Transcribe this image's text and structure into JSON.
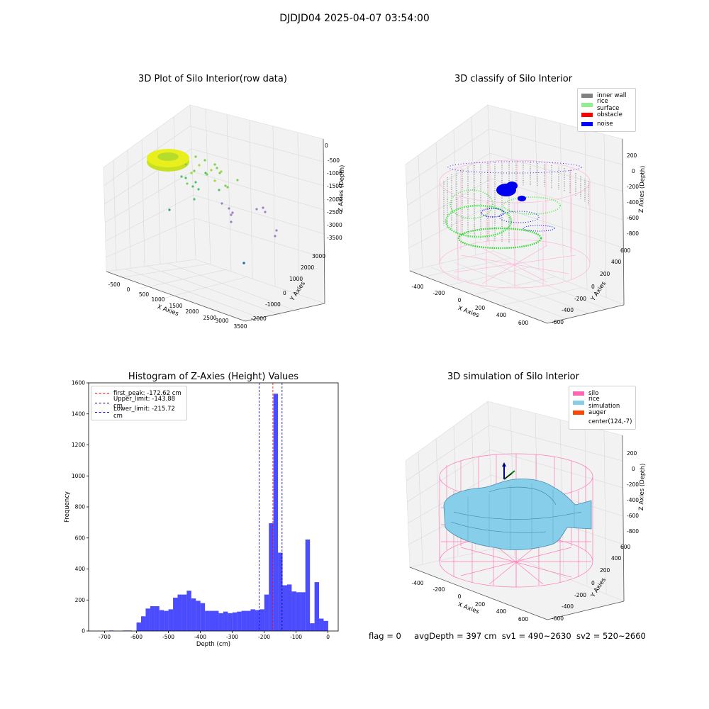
{
  "figure": {
    "suptitle": "DJDJD04 2025-04-07 03:54:00",
    "status": {
      "flag": "flag = 0",
      "avg_depth": "avgDepth = 397 cm",
      "sv1": "sv1 = 490~2630",
      "sv2": "sv2 = 520~2660"
    }
  },
  "chart_data": [
    {
      "type": "scatter3d",
      "title": "3D Plot of Silo Interior(row data)",
      "xlabel": "X Axies",
      "ylabel": "Y Axies",
      "zlabel": "Z Axies (Depth)",
      "x_ticks": [
        "-500",
        "0",
        "500",
        "1000",
        "1500",
        "2000",
        "2500",
        "3000",
        "3500"
      ],
      "y_ticks": [
        "-2000",
        "-1000",
        "0",
        "1000",
        "2000",
        "3000"
      ],
      "z_ticks": [
        "0",
        "-500",
        "-1000",
        "-1500",
        "-2000",
        "-2500",
        "-3000",
        "-3500"
      ],
      "xlim": [
        -600,
        3600
      ],
      "ylim": [
        -2200,
        3300
      ],
      "zlim": [
        -3700,
        200
      ],
      "colormap": "viridis",
      "grid": true
    },
    {
      "type": "scatter3d",
      "title": "3D classify of Silo Interior",
      "xlabel": "X Axies",
      "ylabel": "Y Axies",
      "zlabel": "Z Axies (Depth)",
      "x_ticks": [
        "-400",
        "-200",
        "0",
        "200",
        "400",
        "600"
      ],
      "y_ticks": [
        "-600",
        "-400",
        "-200",
        "0",
        "200",
        "400",
        "600"
      ],
      "z_ticks": [
        "200",
        "0",
        "-200",
        "-400",
        "-600",
        "-800"
      ],
      "xlim": [
        -500,
        700
      ],
      "ylim": [
        -650,
        650
      ],
      "zlim": [
        -900,
        300
      ],
      "legend": [
        {
          "label": "inner wall",
          "color": "#808080"
        },
        {
          "label": "rice surface",
          "color": "#90ee90"
        },
        {
          "label": "obstacle",
          "color": "#ff0000"
        },
        {
          "label": "noise",
          "color": "#0000ff"
        }
      ],
      "legend_position": "top-right",
      "grid": true
    },
    {
      "type": "bar",
      "title": "Histogram of Z-Axies (Height) Values",
      "xlabel": "Depth (cm)",
      "ylabel": "Frequency",
      "x_ticks": [
        "-700",
        "-600",
        "-500",
        "-400",
        "-300",
        "-200",
        "-100",
        "0"
      ],
      "y_ticks": [
        "0",
        "200",
        "400",
        "600",
        "800",
        "1000",
        "1200",
        "1400",
        "1600"
      ],
      "xlim": [
        -750,
        32
      ],
      "ylim": [
        0,
        1600
      ],
      "bin_width": 14.3,
      "bin_starts": [
        -700,
        -685.7,
        -671.4,
        -657.1,
        -642.8,
        -628.5,
        -614.2,
        -599.9,
        -585.6,
        -571.3,
        -557.0,
        -542.7,
        -528.4,
        -514.1,
        -499.8,
        -485.5,
        -471.2,
        -456.9,
        -442.6,
        -428.3,
        -414.0,
        -399.7,
        -385.4,
        -371.1,
        -356.8,
        -342.5,
        -328.2,
        -313.9,
        -299.6,
        -285.3,
        -271.0,
        -256.7,
        -242.4,
        -228.1,
        -213.8,
        -199.5,
        -185.2,
        -170.9,
        -156.6,
        -142.3,
        -128.0,
        -113.7,
        -99.4,
        -85.1,
        -70.8,
        -56.5,
        -42.2,
        -27.9,
        -13.6
      ],
      "values": [
        0,
        3,
        0,
        0,
        3,
        3,
        0,
        55,
        95,
        145,
        160,
        160,
        135,
        130,
        140,
        215,
        235,
        235,
        260,
        210,
        195,
        180,
        130,
        130,
        130,
        115,
        125,
        115,
        120,
        125,
        130,
        130,
        140,
        135,
        140,
        235,
        695,
        1530,
        505,
        295,
        300,
        255,
        250,
        250,
        590,
        50,
        315,
        80,
        65
      ],
      "bar_color": "#0000ff",
      "bar_alpha": 0.7,
      "reference_lines": [
        {
          "label": "first_peak: -172.62 cm",
          "value": -172.62,
          "color": "#ff0000"
        },
        {
          "label": "Upper_limit: -143.88 cm",
          "value": -143.88,
          "color": "#00008b"
        },
        {
          "label": "Lower_limit: -215.72 cm",
          "value": -215.72,
          "color": "#0000ff"
        }
      ],
      "legend_position": "top-left"
    },
    {
      "type": "surface3d",
      "title": "3D simulation of Silo Interior",
      "xlabel": "X Axies",
      "ylabel": "Y Axies",
      "zlabel": "Z Axies (Depth)",
      "x_ticks": [
        "-400",
        "-200",
        "0",
        "200",
        "400",
        "600"
      ],
      "y_ticks": [
        "-600",
        "-400",
        "-200",
        "0",
        "200",
        "400",
        "600"
      ],
      "z_ticks": [
        "200",
        "0",
        "-200",
        "-400",
        "-600",
        "-800"
      ],
      "xlim": [
        -500,
        700
      ],
      "ylim": [
        -650,
        650
      ],
      "zlim": [
        -900,
        300
      ],
      "legend": [
        {
          "label": "silo",
          "color": "#ff69b4"
        },
        {
          "label": "rice simulation",
          "color": "#87ceeb"
        },
        {
          "label": "auger",
          "color": "#ff4500"
        },
        {
          "label": "center(124,-7)",
          "color": "#ffffff"
        }
      ],
      "legend_position": "top-right",
      "grid": true
    }
  ]
}
